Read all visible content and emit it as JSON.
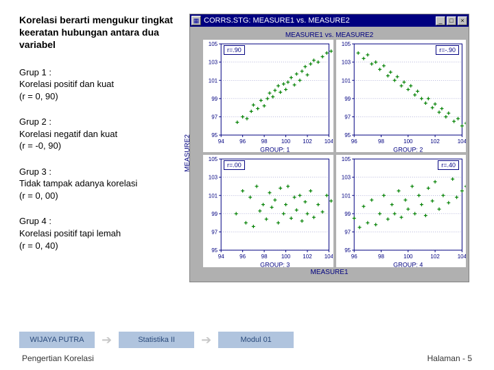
{
  "title": "Korelasi berarti mengukur tingkat keeratan hubungan antara dua variabel",
  "groups": [
    {
      "head": "Grup 1 :",
      "body": "Korelasi positif dan kuat",
      "r": "(r = 0, 90)"
    },
    {
      "head": "Grup 2 :",
      "body": "Korelasi negatif dan kuat",
      "r": "(r = -0, 90)"
    },
    {
      "head": "Grup 3 :",
      "body": "Tidak tampak adanya korelasi",
      "r": "(r = 0, 00)"
    },
    {
      "head": "Grup 4 :",
      "body": "Korelasi positif tapi lemah",
      "r": "(r = 0, 40)"
    }
  ],
  "window": {
    "title": "CORRS.STG: MEASURE1 vs. MEASURE2",
    "chart_title": "MEASURE1 vs. MEASURE2",
    "ylabel": "MEASURE2",
    "xlabel": "MEASURE1",
    "axis_color": "#000080",
    "marker_color": "#008000",
    "panels": [
      {
        "rlabel": "r=.90",
        "rbox_side": "left",
        "sub": "GROUP: 1",
        "yticks": [
          95,
          97,
          99,
          101,
          103,
          105
        ],
        "xticks": [
          94,
          96,
          98,
          100,
          102,
          104
        ],
        "points": [
          [
            95.5,
            96.4
          ],
          [
            96.0,
            97.0
          ],
          [
            96.4,
            96.8
          ],
          [
            96.8,
            97.6
          ],
          [
            97.0,
            98.3
          ],
          [
            97.4,
            97.9
          ],
          [
            97.7,
            98.8
          ],
          [
            98.0,
            98.2
          ],
          [
            98.3,
            99.0
          ],
          [
            98.5,
            99.6
          ],
          [
            98.8,
            99.2
          ],
          [
            99.0,
            99.9
          ],
          [
            99.3,
            100.4
          ],
          [
            99.5,
            99.7
          ],
          [
            99.8,
            100.6
          ],
          [
            100.0,
            100.0
          ],
          [
            100.2,
            100.8
          ],
          [
            100.5,
            101.3
          ],
          [
            100.8,
            100.5
          ],
          [
            101.0,
            101.7
          ],
          [
            101.3,
            101.0
          ],
          [
            101.5,
            102.0
          ],
          [
            101.8,
            102.5
          ],
          [
            102.0,
            101.6
          ],
          [
            102.3,
            102.8
          ],
          [
            102.6,
            103.2
          ],
          [
            103.0,
            103.0
          ],
          [
            103.4,
            103.6
          ],
          [
            103.8,
            104.0
          ],
          [
            104.2,
            104.2
          ]
        ]
      },
      {
        "rlabel": "r=-.90",
        "rbox_side": "right",
        "sub": "GROUP: 2",
        "yticks": [
          95,
          97,
          99,
          101,
          103,
          105
        ],
        "xticks": [
          96,
          98,
          100,
          102,
          104
        ],
        "points": [
          [
            96.3,
            104.0
          ],
          [
            96.7,
            103.4
          ],
          [
            97.0,
            103.8
          ],
          [
            97.3,
            102.8
          ],
          [
            97.6,
            103.0
          ],
          [
            97.9,
            102.2
          ],
          [
            98.2,
            102.6
          ],
          [
            98.5,
            101.5
          ],
          [
            98.7,
            101.9
          ],
          [
            99.0,
            101.0
          ],
          [
            99.2,
            101.4
          ],
          [
            99.5,
            100.4
          ],
          [
            99.7,
            100.8
          ],
          [
            100.0,
            100.0
          ],
          [
            100.2,
            100.4
          ],
          [
            100.5,
            99.4
          ],
          [
            100.7,
            99.8
          ],
          [
            101.0,
            99.0
          ],
          [
            101.3,
            98.5
          ],
          [
            101.5,
            99.0
          ],
          [
            101.8,
            98.0
          ],
          [
            102.0,
            98.4
          ],
          [
            102.3,
            97.5
          ],
          [
            102.5,
            97.9
          ],
          [
            102.8,
            97.0
          ],
          [
            103.0,
            97.4
          ],
          [
            103.4,
            96.5
          ],
          [
            103.7,
            96.8
          ],
          [
            104.0,
            96.0
          ],
          [
            104.3,
            96.3
          ]
        ]
      },
      {
        "rlabel": "r=.00",
        "rbox_side": "left",
        "sub": "GROUP: 3",
        "yticks": [
          95,
          97,
          99,
          101,
          103,
          105
        ],
        "xticks": [
          94,
          96,
          98,
          100,
          102,
          104
        ],
        "points": [
          [
            95.4,
            99.0
          ],
          [
            96.0,
            101.5
          ],
          [
            96.3,
            98.0
          ],
          [
            96.7,
            100.8
          ],
          [
            97.0,
            97.6
          ],
          [
            97.3,
            102.0
          ],
          [
            97.6,
            99.3
          ],
          [
            97.9,
            100.0
          ],
          [
            98.2,
            98.4
          ],
          [
            98.5,
            101.3
          ],
          [
            98.7,
            99.7
          ],
          [
            99.0,
            100.5
          ],
          [
            99.3,
            98.0
          ],
          [
            99.5,
            101.8
          ],
          [
            99.8,
            99.0
          ],
          [
            100.0,
            100.0
          ],
          [
            100.2,
            102.0
          ],
          [
            100.5,
            98.5
          ],
          [
            100.8,
            100.8
          ],
          [
            101.0,
            99.4
          ],
          [
            101.3,
            101.0
          ],
          [
            101.5,
            98.2
          ],
          [
            101.8,
            100.3
          ],
          [
            102.0,
            99.0
          ],
          [
            102.3,
            101.5
          ],
          [
            102.6,
            98.6
          ],
          [
            103.0,
            100.0
          ],
          [
            103.4,
            99.2
          ],
          [
            103.8,
            101.0
          ],
          [
            104.2,
            100.4
          ]
        ]
      },
      {
        "rlabel": "r=.40",
        "rbox_side": "right",
        "sub": "GROUP: 4",
        "yticks": [
          95,
          97,
          99,
          101,
          103,
          105
        ],
        "xticks": [
          96,
          98,
          100,
          102,
          104
        ],
        "points": [
          [
            96.0,
            98.5
          ],
          [
            96.4,
            97.5
          ],
          [
            96.7,
            99.8
          ],
          [
            97.0,
            98.0
          ],
          [
            97.3,
            100.5
          ],
          [
            97.6,
            97.8
          ],
          [
            97.9,
            99.0
          ],
          [
            98.2,
            101.0
          ],
          [
            98.5,
            98.4
          ],
          [
            98.8,
            100.0
          ],
          [
            99.0,
            99.0
          ],
          [
            99.3,
            101.5
          ],
          [
            99.5,
            98.6
          ],
          [
            99.8,
            100.5
          ],
          [
            100.0,
            99.5
          ],
          [
            100.3,
            102.0
          ],
          [
            100.5,
            99.0
          ],
          [
            100.8,
            101.0
          ],
          [
            101.0,
            100.0
          ],
          [
            101.3,
            98.8
          ],
          [
            101.5,
            101.8
          ],
          [
            101.8,
            100.4
          ],
          [
            102.0,
            102.5
          ],
          [
            102.3,
            99.5
          ],
          [
            102.6,
            101.0
          ],
          [
            103.0,
            100.2
          ],
          [
            103.3,
            102.8
          ],
          [
            103.6,
            100.8
          ],
          [
            104.0,
            101.5
          ],
          [
            104.3,
            102.0
          ]
        ]
      }
    ]
  },
  "tabs": [
    "WIJAYA PUTRA",
    "Statistika II",
    "Modul 01"
  ],
  "footnote_left": "Pengertian Korelasi",
  "footnote_right": "Halaman - 5"
}
